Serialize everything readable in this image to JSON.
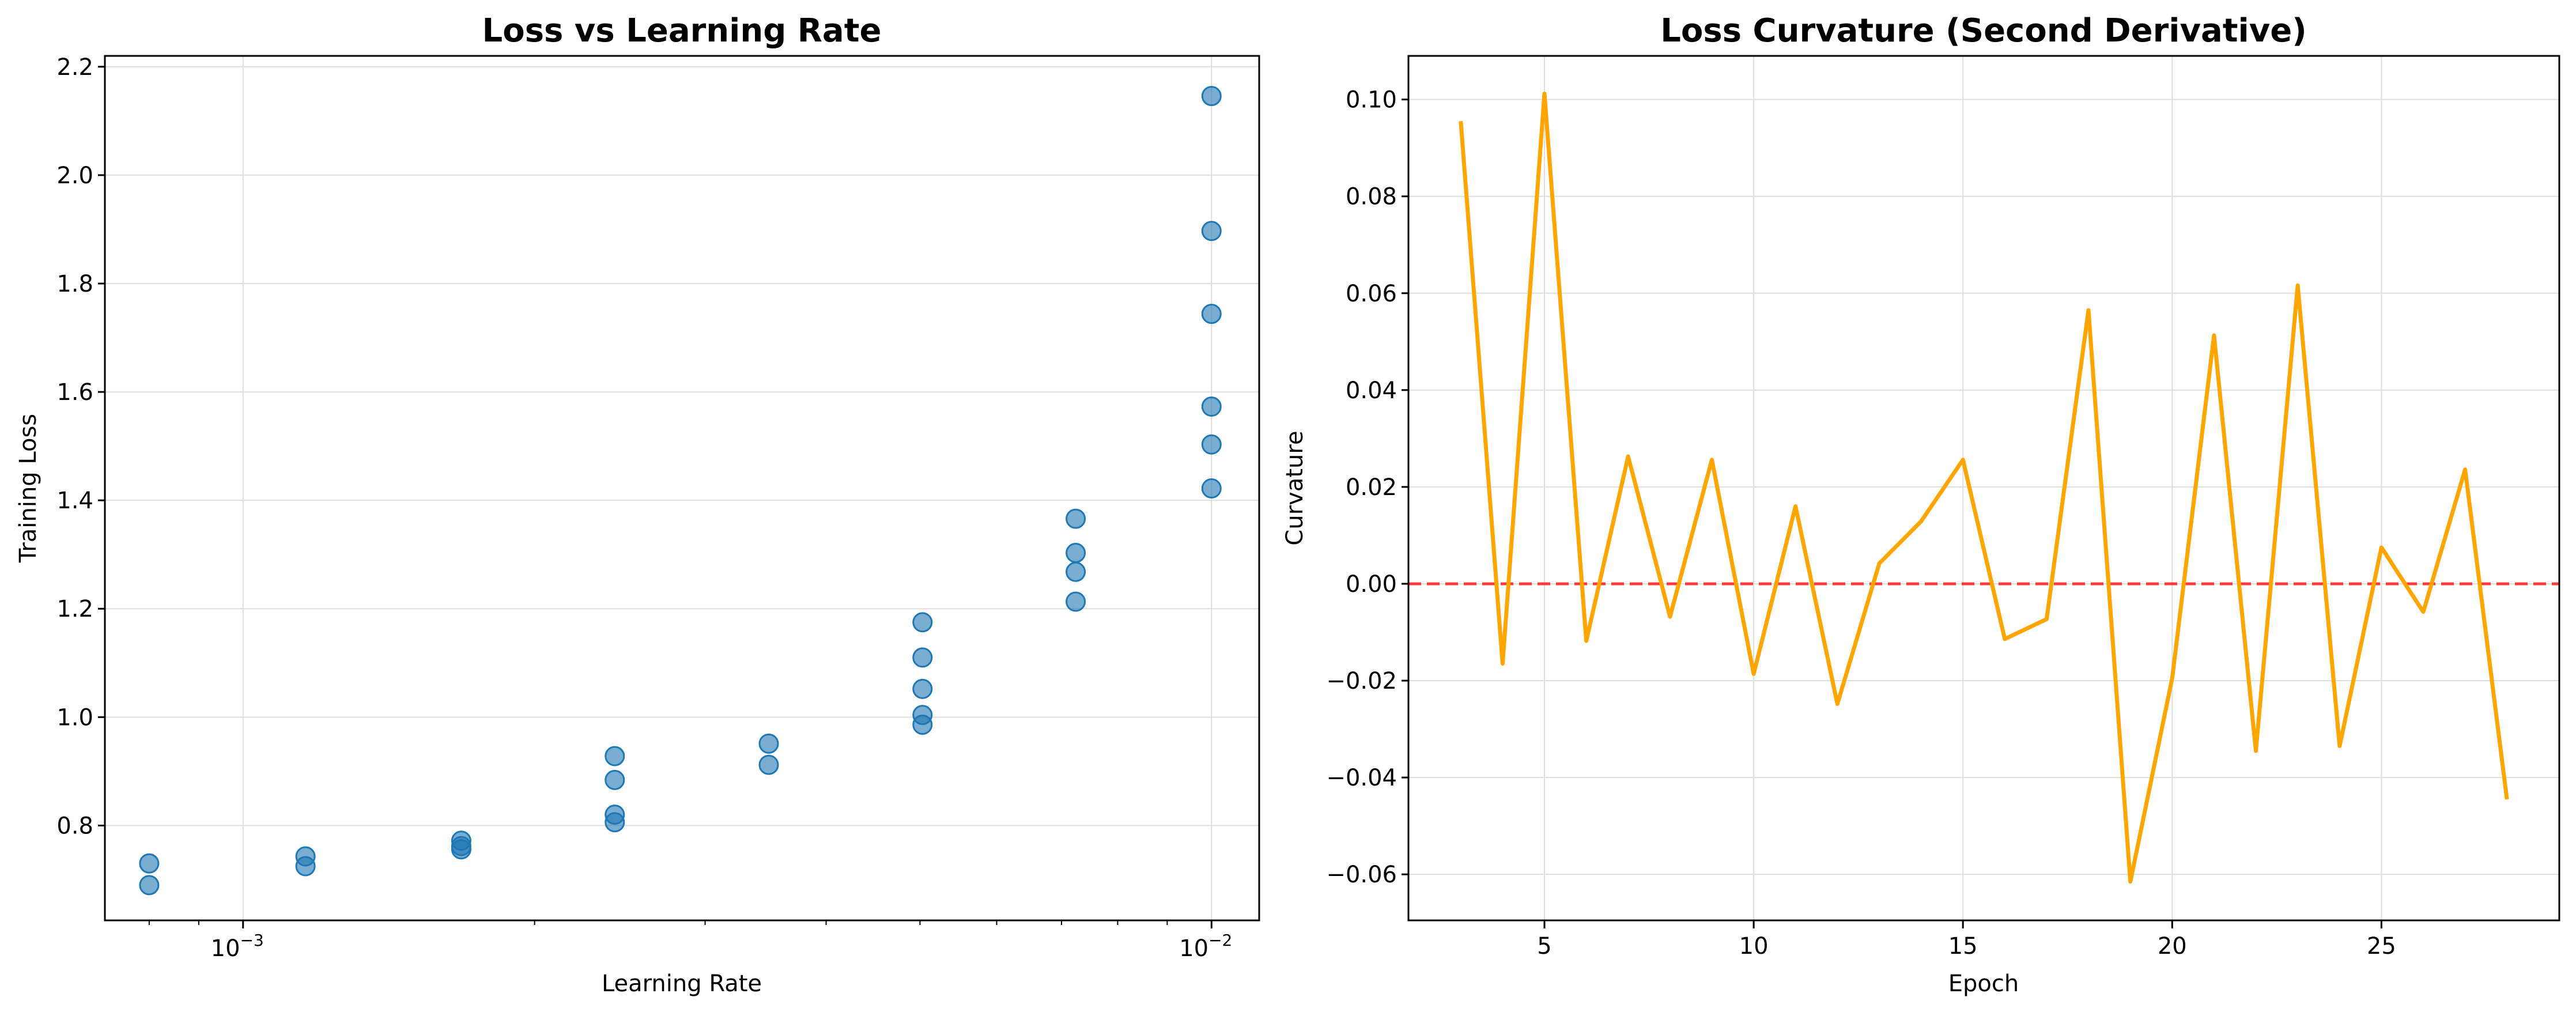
{
  "chart_data": [
    {
      "type": "scatter",
      "title": "Loss vs Learning Rate",
      "xlabel": "Learning Rate",
      "ylabel": "Training Loss",
      "xscale": "log",
      "xlim": [
        0.00072,
        0.0112
      ],
      "ylim": [
        0.625,
        2.22
      ],
      "xticks": [
        {
          "value": 0.001,
          "base": "10",
          "exp": "−3"
        },
        {
          "value": 0.01,
          "base": "10",
          "exp": "−2"
        }
      ],
      "yticks": [
        {
          "value": 0.8,
          "label": "0.8"
        },
        {
          "value": 1.0,
          "label": "1.0"
        },
        {
          "value": 1.2,
          "label": "1.2"
        },
        {
          "value": 1.4,
          "label": "1.4"
        },
        {
          "value": 1.6,
          "label": "1.6"
        },
        {
          "value": 1.8,
          "label": "1.8"
        },
        {
          "value": 2.0,
          "label": "2.0"
        },
        {
          "value": 2.2,
          "label": "2.2"
        }
      ],
      "grid": true,
      "color": "#1f77b4",
      "points": [
        {
          "x": 0.0008,
          "y": 0.73
        },
        {
          "x": 0.0008,
          "y": 0.69
        },
        {
          "x": 0.00116,
          "y": 0.743
        },
        {
          "x": 0.00116,
          "y": 0.725
        },
        {
          "x": 0.00168,
          "y": 0.772
        },
        {
          "x": 0.00168,
          "y": 0.762
        },
        {
          "x": 0.00168,
          "y": 0.756
        },
        {
          "x": 0.00242,
          "y": 0.928
        },
        {
          "x": 0.00242,
          "y": 0.884
        },
        {
          "x": 0.00242,
          "y": 0.82
        },
        {
          "x": 0.00242,
          "y": 0.806
        },
        {
          "x": 0.00349,
          "y": 0.951
        },
        {
          "x": 0.00349,
          "y": 0.912
        },
        {
          "x": 0.00503,
          "y": 1.175
        },
        {
          "x": 0.00503,
          "y": 1.11
        },
        {
          "x": 0.00503,
          "y": 1.052
        },
        {
          "x": 0.00503,
          "y": 1.004
        },
        {
          "x": 0.00503,
          "y": 0.986
        },
        {
          "x": 0.00724,
          "y": 1.366
        },
        {
          "x": 0.00724,
          "y": 1.303
        },
        {
          "x": 0.00724,
          "y": 1.268
        },
        {
          "x": 0.00724,
          "y": 1.213
        },
        {
          "x": 0.01,
          "y": 2.146
        },
        {
          "x": 0.01,
          "y": 1.897
        },
        {
          "x": 0.01,
          "y": 1.744
        },
        {
          "x": 0.01,
          "y": 1.573
        },
        {
          "x": 0.01,
          "y": 1.503
        },
        {
          "x": 0.01,
          "y": 1.422
        }
      ]
    },
    {
      "type": "line",
      "title": "Loss Curvature (Second Derivative)",
      "xlabel": "Epoch",
      "ylabel": "Curvature",
      "xlim": [
        1.75,
        29.25
      ],
      "ylim": [
        -0.0695,
        0.109
      ],
      "xticks": [
        {
          "value": 5,
          "label": "5"
        },
        {
          "value": 10,
          "label": "10"
        },
        {
          "value": 15,
          "label": "15"
        },
        {
          "value": 20,
          "label": "20"
        },
        {
          "value": 25,
          "label": "25"
        }
      ],
      "yticks": [
        {
          "value": -0.06,
          "label": "−0.06"
        },
        {
          "value": -0.04,
          "label": "−0.04"
        },
        {
          "value": -0.02,
          "label": "−0.02"
        },
        {
          "value": 0.0,
          "label": "0.00"
        },
        {
          "value": 0.02,
          "label": "0.02"
        },
        {
          "value": 0.04,
          "label": "0.04"
        },
        {
          "value": 0.06,
          "label": "0.06"
        },
        {
          "value": 0.08,
          "label": "0.08"
        },
        {
          "value": 0.1,
          "label": "0.10"
        }
      ],
      "grid": true,
      "color": "#ffa500",
      "reference_line": {
        "y": 0,
        "color": "#ff0000",
        "style": "dashed"
      },
      "x": [
        3,
        4,
        5,
        6,
        7,
        8,
        9,
        10,
        11,
        12,
        13,
        14,
        15,
        16,
        17,
        18,
        19,
        20,
        21,
        22,
        23,
        24,
        25,
        26,
        27,
        28
      ],
      "y": [
        0.0955,
        -0.0165,
        0.1012,
        -0.0118,
        0.0263,
        -0.0068,
        0.0256,
        -0.0186,
        0.016,
        -0.0248,
        0.0042,
        0.0129,
        0.0256,
        -0.0114,
        -0.0073,
        0.0565,
        -0.0615,
        -0.0195,
        0.0513,
        -0.0345,
        0.0616,
        -0.0335,
        0.0075,
        -0.0058,
        0.0236,
        -0.0445
      ]
    }
  ]
}
